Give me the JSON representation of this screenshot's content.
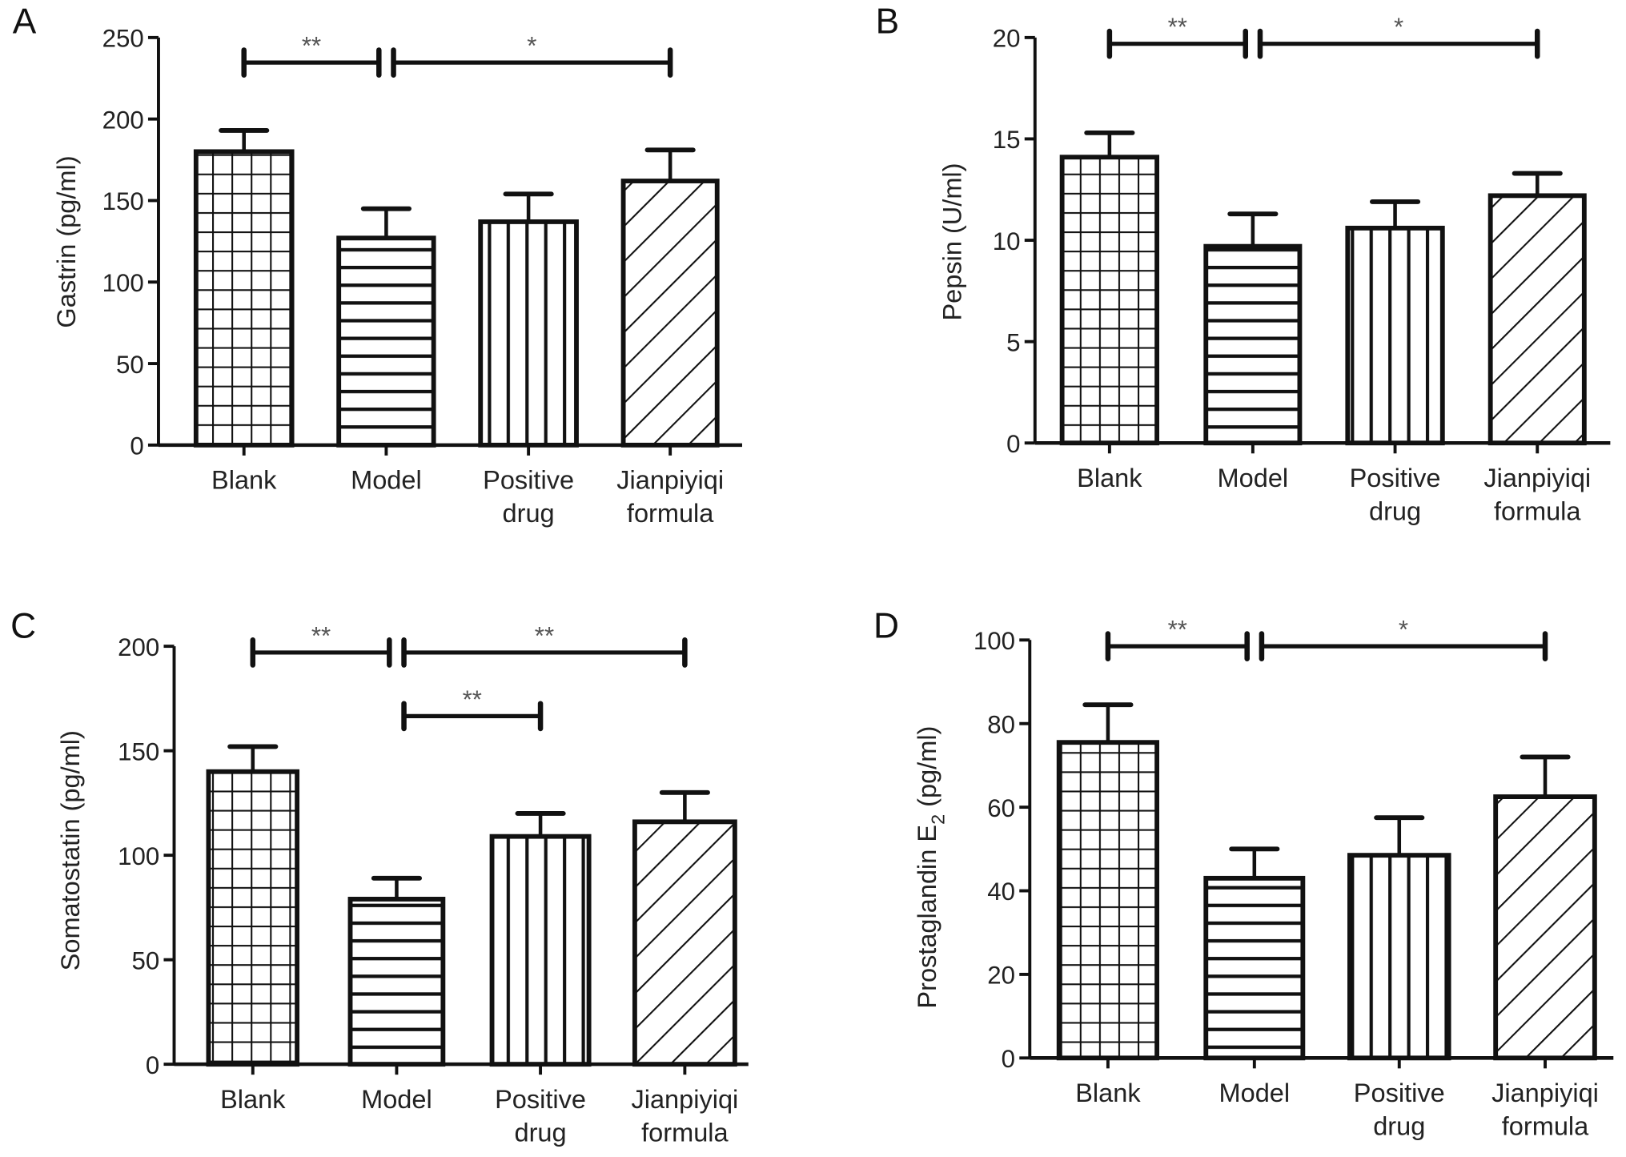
{
  "chart_data": [
    {
      "panel": "A",
      "type": "bar",
      "categories": [
        [
          "Blank"
        ],
        [
          "Model"
        ],
        [
          "Positive",
          "drug"
        ],
        [
          "Jianpiyiqi",
          "formula"
        ]
      ],
      "values": [
        180,
        127,
        137,
        162
      ],
      "errors": [
        13,
        18,
        17,
        19
      ],
      "ylabel": "Gastrin (pg/ml)",
      "ylim": [
        0,
        250
      ],
      "yticks": [
        0,
        50,
        100,
        150,
        200,
        250
      ],
      "significance": [
        {
          "from": 0,
          "to": 1,
          "label": "**",
          "level": 0
        },
        {
          "from": 1,
          "to": 3,
          "label": "*",
          "level": 0
        }
      ]
    },
    {
      "panel": "B",
      "type": "bar",
      "categories": [
        [
          "Blank"
        ],
        [
          "Model"
        ],
        [
          "Positive",
          "drug"
        ],
        [
          "Jianpiyiqi",
          "formula"
        ]
      ],
      "values": [
        14.1,
        9.7,
        10.6,
        12.2
      ],
      "errors": [
        1.2,
        1.6,
        1.3,
        1.1
      ],
      "ylabel": "Pepsin (U/ml)",
      "ylim": [
        0,
        20
      ],
      "yticks": [
        0,
        5,
        10,
        15,
        20
      ],
      "significance": [
        {
          "from": 0,
          "to": 1,
          "label": "**",
          "level": 0
        },
        {
          "from": 1,
          "to": 3,
          "label": "*",
          "level": 0
        }
      ]
    },
    {
      "panel": "C",
      "type": "bar",
      "categories": [
        [
          "Blank"
        ],
        [
          "Model"
        ],
        [
          "Positive",
          "drug"
        ],
        [
          "Jianpiyiqi",
          "formula"
        ]
      ],
      "values": [
        140,
        79,
        109,
        116
      ],
      "errors": [
        12,
        10,
        11,
        14
      ],
      "ylabel": "Somatostatin (pg/ml)",
      "ylim": [
        0,
        200
      ],
      "yticks": [
        0,
        50,
        100,
        150,
        200
      ],
      "significance": [
        {
          "from": 0,
          "to": 1,
          "label": "**",
          "level": 0
        },
        {
          "from": 1,
          "to": 3,
          "label": "**",
          "level": 0
        },
        {
          "from": 1,
          "to": 2,
          "label": "**",
          "level": 1
        }
      ]
    },
    {
      "panel": "D",
      "type": "bar",
      "categories": [
        [
          "Blank"
        ],
        [
          "Model"
        ],
        [
          "Positive",
          "drug"
        ],
        [
          "Jianpiyiqi",
          "formula"
        ]
      ],
      "values": [
        75.5,
        43,
        48.5,
        62.5
      ],
      "errors": [
        9,
        7,
        9,
        9.5
      ],
      "ylabel": "Prostaglandin E",
      "ylabel_sub": "2",
      "ylabel_unit": " (pg/ml)",
      "ylim": [
        0,
        100
      ],
      "yticks": [
        0,
        20,
        40,
        60,
        80,
        100
      ],
      "significance": [
        {
          "from": 0,
          "to": 1,
          "label": "**",
          "level": 0
        },
        {
          "from": 1,
          "to": 3,
          "label": "*",
          "level": 0
        }
      ]
    }
  ],
  "patterns": [
    "grid",
    "horizontal-lines",
    "vertical-lines",
    "diagonal-lines"
  ],
  "colors": {
    "ink": "#111111",
    "background": "#ffffff"
  }
}
